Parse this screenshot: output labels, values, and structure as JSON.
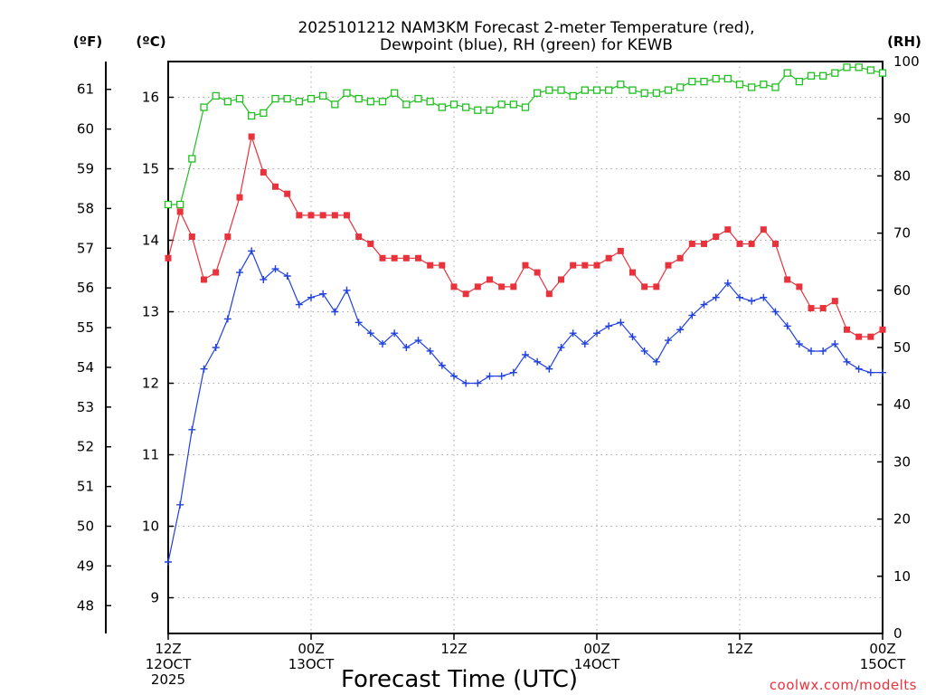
{
  "chart_data": {
    "type": "line",
    "title_lines": [
      "2025101212 NAM3KM Forecast 2-meter Temperature (red),",
      "Dewpoint (blue), RH (green) for KEWB"
    ],
    "xlabel": "Forecast Time (UTC)",
    "credit": "coolwx.com/modelts",
    "units": {
      "fahrenheit": "(ºF)",
      "celsius": "(ºC)",
      "rh": "(RH)"
    },
    "x_ticks": [
      {
        "hour": 0,
        "lines": [
          "12Z",
          "12OCT",
          "2025"
        ]
      },
      {
        "hour": 12,
        "lines": [
          "00Z",
          "13OCT"
        ]
      },
      {
        "hour": 24,
        "lines": [
          "12Z"
        ]
      },
      {
        "hour": 36,
        "lines": [
          "00Z",
          "14OCT"
        ]
      },
      {
        "hour": 48,
        "lines": [
          "12Z"
        ]
      },
      {
        "hour": 60,
        "lines": [
          "00Z",
          "15OCT"
        ]
      }
    ],
    "xlim": [
      0,
      60
    ],
    "celsius_axis": {
      "ylim": [
        8.5,
        16.5
      ],
      "ticks": [
        9,
        10,
        11,
        12,
        13,
        14,
        15,
        16
      ]
    },
    "fahrenheit_axis": {
      "ticks": [
        48,
        49,
        50,
        51,
        52,
        53,
        54,
        55,
        56,
        57,
        58,
        59,
        60,
        61
      ]
    },
    "rh_axis": {
      "ylim": [
        0,
        100
      ],
      "ticks": [
        0,
        10,
        20,
        30,
        40,
        50,
        60,
        70,
        80,
        90,
        100
      ]
    },
    "grid": true,
    "x": [
      0,
      1,
      2,
      3,
      4,
      5,
      6,
      7,
      8,
      9,
      10,
      11,
      12,
      13,
      14,
      15,
      16,
      17,
      18,
      19,
      20,
      21,
      22,
      23,
      24,
      25,
      26,
      27,
      28,
      29,
      30,
      31,
      32,
      33,
      34,
      35,
      36,
      37,
      38,
      39,
      40,
      41,
      42,
      43,
      44,
      45,
      46,
      47,
      48,
      49,
      50,
      51,
      52,
      53,
      54,
      55,
      56,
      57,
      58,
      59,
      60
    ],
    "series": [
      {
        "name": "Temperature",
        "units": "C",
        "color": "#e8323c",
        "marker": "filled-square",
        "values": [
          13.75,
          14.4,
          14.05,
          13.45,
          13.55,
          14.05,
          14.6,
          15.45,
          14.95,
          14.75,
          14.65,
          14.35,
          14.35,
          14.35,
          14.35,
          14.35,
          14.05,
          13.95,
          13.75,
          13.75,
          13.75,
          13.75,
          13.65,
          13.65,
          13.35,
          13.25,
          13.35,
          13.45,
          13.35,
          13.35,
          13.65,
          13.55,
          13.25,
          13.45,
          13.65,
          13.65,
          13.65,
          13.75,
          13.85,
          13.55,
          13.35,
          13.35,
          13.65,
          13.75,
          13.95,
          13.95,
          14.05,
          14.15,
          13.95,
          13.95,
          14.15,
          13.95,
          13.45,
          13.35,
          13.05,
          13.05,
          13.15,
          12.75,
          12.65,
          12.65,
          12.75
        ]
      },
      {
        "name": "Dewpoint",
        "units": "C",
        "color": "#2040e0",
        "marker": "plus",
        "values": [
          9.5,
          10.3,
          11.35,
          12.2,
          12.5,
          12.9,
          13.55,
          13.85,
          13.45,
          13.6,
          13.5,
          13.1,
          13.2,
          13.25,
          13.0,
          13.3,
          12.85,
          12.7,
          12.55,
          12.7,
          12.5,
          12.6,
          12.45,
          12.25,
          12.1,
          12.0,
          12.0,
          12.1,
          12.1,
          12.15,
          12.4,
          12.3,
          12.2,
          12.5,
          12.7,
          12.55,
          12.7,
          12.8,
          12.85,
          12.65,
          12.45,
          12.3,
          12.6,
          12.75,
          12.95,
          13.1,
          13.2,
          13.4,
          13.2,
          13.15,
          13.2,
          13.0,
          12.8,
          12.55,
          12.45,
          12.45,
          12.55,
          12.3,
          12.2,
          12.15,
          12.15
        ]
      },
      {
        "name": "RH",
        "units": "%",
        "color": "#20c020",
        "marker": "open-square",
        "values": [
          75,
          75,
          83,
          92,
          94,
          93,
          93.5,
          90.5,
          91,
          93.5,
          93.5,
          93,
          93.5,
          94,
          92.5,
          94.5,
          93.5,
          93,
          93,
          94.5,
          92.5,
          93.5,
          93,
          92,
          92.5,
          92,
          91.5,
          91.5,
          92.5,
          92.5,
          92,
          94.5,
          95,
          95,
          94,
          95,
          95,
          95,
          96,
          95,
          94.5,
          94.5,
          95,
          95.5,
          96.5,
          96.5,
          97,
          97,
          96,
          95.5,
          96,
          95.5,
          98,
          96.5,
          97.5,
          97.5,
          98,
          99,
          99,
          98.5,
          98
        ]
      }
    ]
  }
}
